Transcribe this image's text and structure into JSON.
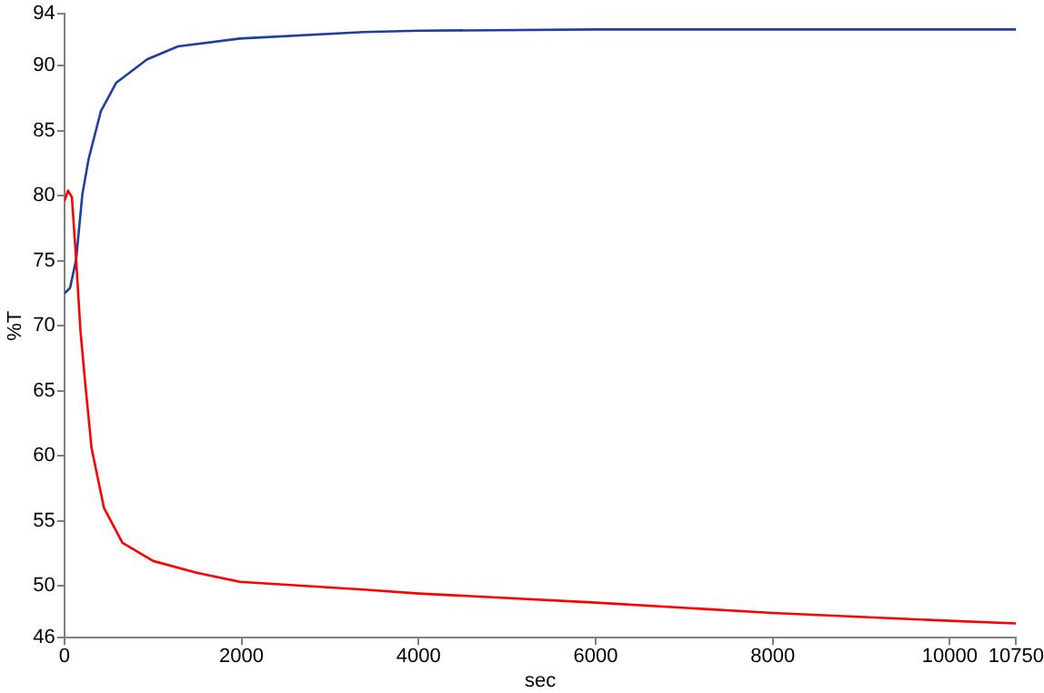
{
  "chart_data": {
    "type": "line",
    "xlabel": "sec",
    "ylabel": "%T",
    "xlim": [
      0,
      10750
    ],
    "xticks": [
      0,
      2000,
      4000,
      6000,
      8000,
      10000,
      10750
    ],
    "ylim": [
      46,
      94
    ],
    "yticks": [
      46,
      50,
      55,
      60,
      65,
      70,
      75,
      80,
      85,
      90,
      94
    ],
    "grid": false,
    "legend": false,
    "marker": "none",
    "series": [
      {
        "color": "#ff0000",
        "x": [
          0,
          40,
          84,
          132,
          181,
          236,
          306,
          446,
          655,
          1004,
          1492,
          1981,
          3375,
          4000,
          6000,
          8000,
          10000,
          10750
        ],
        "values": [
          79.6,
          80.4,
          79.9,
          75.1,
          69.6,
          65.5,
          60.6,
          56.0,
          53.3,
          51.9,
          51.0,
          50.3,
          49.7,
          49.4,
          48.7,
          47.9,
          47.3,
          47.1
        ]
      },
      {
        "color": "#1f3fa0",
        "x": [
          0,
          63,
          132,
          202,
          272,
          411,
          585,
          934,
          1283,
          1981,
          3375,
          4000,
          6000,
          8000,
          10000,
          10750
        ],
        "values": [
          72.5,
          72.9,
          75.1,
          80.1,
          82.8,
          86.5,
          88.7,
          90.5,
          91.5,
          92.1,
          92.6,
          92.7,
          92.8,
          92.8,
          92.8,
          92.8
        ]
      }
    ]
  }
}
